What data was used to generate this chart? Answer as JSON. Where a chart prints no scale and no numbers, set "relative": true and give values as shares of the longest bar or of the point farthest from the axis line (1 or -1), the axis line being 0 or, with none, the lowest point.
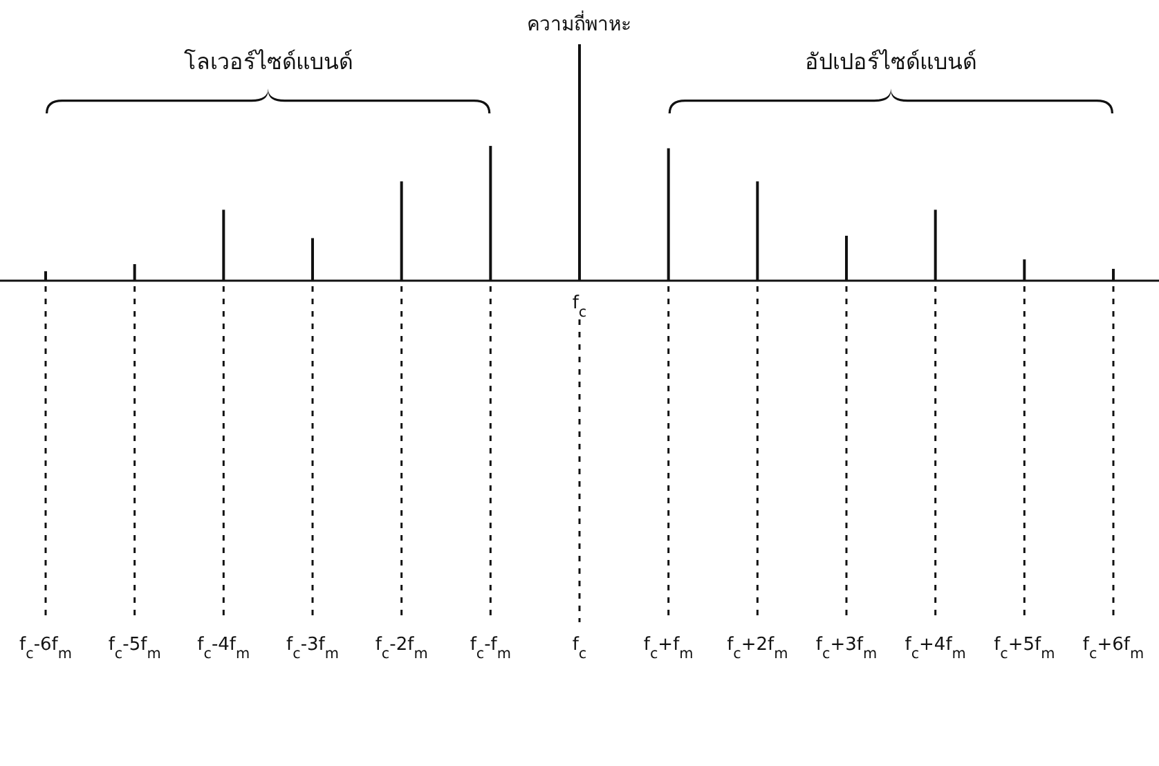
{
  "chart_data": {
    "type": "bar",
    "relative": true,
    "color": "#111111",
    "grid": "x",
    "categories": [
      "f$_{c}$-6f$_{m}$",
      "f$_{c}$-5f$_{m}$",
      "f$_{c}$-4f$_{m}$",
      "f$_{c}$-3f$_{m}$",
      "f$_{c}$-2f$_{m}$",
      "f$_{c}$-f$_{m}$",
      "f$_{c}$",
      "f$_{c}$+f$_{m}$",
      "f$_{c}$+2f$_{m}$",
      "f$_{c}$+3f$_{m}$",
      "f$_{c}$+4f$_{m}$",
      "f$_{c}$+5f$_{m}$",
      "f$_{c}$+6f$_{m}$"
    ],
    "values": [
      0.04,
      0.07,
      0.3,
      0.18,
      0.42,
      0.57,
      1,
      0.56,
      0.42,
      0.19,
      0.3,
      0.09,
      0.05
    ],
    "annotations": [
      "ความถี่พาหะ",
      "โลเวอร์ไซด์แบนด์",
      "อัปเปอร์ไซด์แบนด์",
      "f$_{c}$"
    ]
  }
}
